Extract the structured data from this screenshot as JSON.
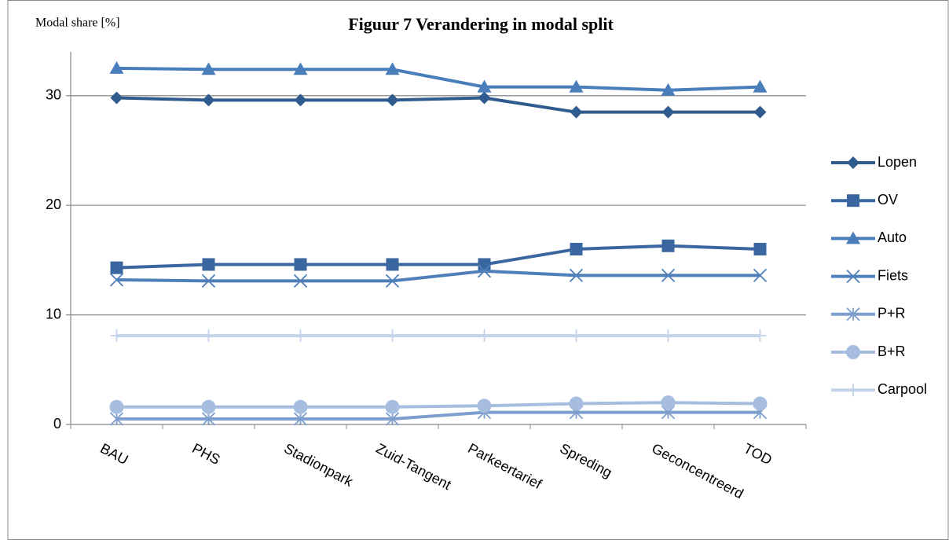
{
  "chart_data": {
    "type": "line",
    "title": "Figuur 7 Verandering in modal split",
    "y_label": "Modal share [%]",
    "categories": [
      "BAU",
      "PHS",
      "Stadionpark",
      "Zuid-Tangent",
      "Parkeertarief",
      "Spreding",
      "Geconcentreerd",
      "TOD"
    ],
    "series": [
      {
        "name": "Lopen",
        "color": "#2f5b8e",
        "marker": "diamond",
        "values": [
          29.8,
          29.6,
          29.6,
          29.6,
          29.8,
          28.5,
          28.5,
          28.5
        ]
      },
      {
        "name": "OV",
        "color": "#3a67a0",
        "marker": "square",
        "values": [
          14.3,
          14.6,
          14.6,
          14.6,
          14.6,
          16.0,
          16.3,
          16.0
        ]
      },
      {
        "name": "Auto",
        "color": "#4a7ebb",
        "marker": "triangle",
        "values": [
          32.5,
          32.4,
          32.4,
          32.4,
          30.8,
          30.8,
          30.5,
          30.8
        ]
      },
      {
        "name": "Fiets",
        "color": "#4f7fb8",
        "marker": "x",
        "values": [
          13.2,
          13.1,
          13.1,
          13.1,
          14.0,
          13.6,
          13.6,
          13.6
        ]
      },
      {
        "name": "P+R",
        "color": "#7e9ecd",
        "marker": "asterisk",
        "values": [
          0.5,
          0.5,
          0.5,
          0.5,
          1.1,
          1.1,
          1.1,
          1.1
        ]
      },
      {
        "name": "B+R",
        "color": "#a6bde0",
        "marker": "circle",
        "values": [
          1.6,
          1.6,
          1.6,
          1.6,
          1.7,
          1.9,
          2.0,
          1.9
        ]
      },
      {
        "name": "Carpool",
        "color": "#c3d3ea",
        "marker": "plus",
        "values": [
          8.1,
          8.1,
          8.1,
          8.1,
          8.1,
          8.1,
          8.1,
          8.1
        ]
      }
    ],
    "ylim": [
      0,
      34
    ],
    "yticks": [
      0,
      10,
      20,
      30
    ],
    "grid": true,
    "legend": "right"
  }
}
